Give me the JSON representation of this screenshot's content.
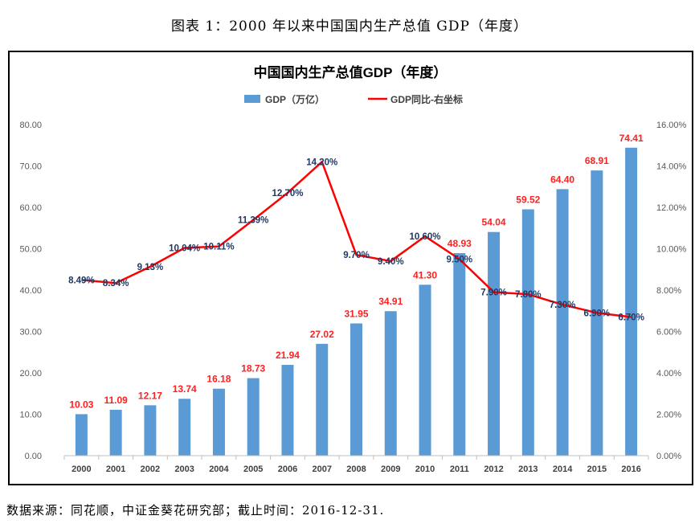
{
  "caption": "图表 1：2000 年以来中国国内生产总值 GDP（年度）",
  "source": "数据来源：同花顺，中证金葵花研究部；截止时间：2016-12-31.",
  "colors": {
    "bar": "#5b9bd5",
    "line": "#ff0000",
    "bar_label": "#ff2020",
    "line_label": "#1f3864",
    "axis_text": "#595959"
  },
  "chart_data": {
    "type": "bar",
    "title": "中国国内生产总值GDP（年度）",
    "categories": [
      "2000",
      "2001",
      "2002",
      "2003",
      "2004",
      "2005",
      "2006",
      "2007",
      "2008",
      "2009",
      "2010",
      "2011",
      "2012",
      "2013",
      "2014",
      "2015",
      "2016"
    ],
    "series": [
      {
        "name": "GDP（万亿）",
        "type": "bar",
        "axis": "left",
        "values": [
          10.03,
          11.09,
          12.17,
          13.74,
          16.18,
          18.73,
          21.94,
          27.02,
          31.95,
          34.91,
          41.3,
          48.93,
          54.04,
          59.52,
          64.4,
          68.91,
          74.41
        ],
        "labels": [
          "10.03",
          "11.09",
          "12.17",
          "13.74",
          "16.18",
          "18.73",
          "21.94",
          "27.02",
          "31.95",
          "34.91",
          "41.30",
          "48.93",
          "54.04",
          "59.52",
          "64.40",
          "68.91",
          "74.41"
        ]
      },
      {
        "name": "GDP同比-右坐标",
        "type": "line",
        "axis": "right",
        "values": [
          8.49,
          8.34,
          9.13,
          10.04,
          10.11,
          11.39,
          12.7,
          14.2,
          9.7,
          9.4,
          10.6,
          9.5,
          7.9,
          7.8,
          7.3,
          6.9,
          6.7
        ],
        "labels": [
          "8.49%",
          "8.34%",
          "9.13%",
          "10.04%",
          "10.11%",
          "11.39%",
          "12.70%",
          "14.20%",
          "9.70%",
          "9.40%",
          "10.60%",
          "9.50%",
          "7.90%",
          "7.80%",
          "7.30%",
          "6.90%",
          "6.70%"
        ]
      }
    ],
    "y_left": {
      "range": [
        0,
        80
      ],
      "ticks": [
        "0.00",
        "10.00",
        "20.00",
        "30.00",
        "40.00",
        "50.00",
        "60.00",
        "70.00",
        "80.00"
      ]
    },
    "y_right": {
      "range": [
        0,
        16
      ],
      "ticks": [
        "0.00%",
        "2.00%",
        "4.00%",
        "6.00%",
        "8.00%",
        "10.00%",
        "12.00%",
        "14.00%",
        "16.00%"
      ]
    },
    "grid": false,
    "legend_position": "top-center"
  }
}
